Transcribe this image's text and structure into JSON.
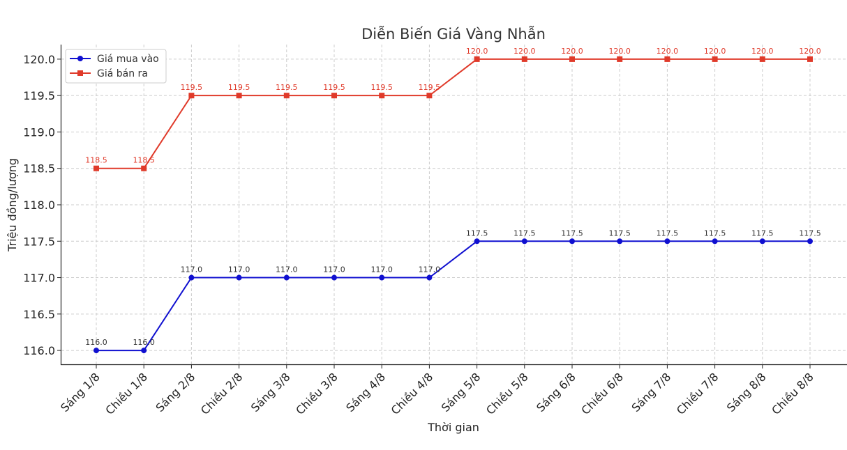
{
  "chart_data": {
    "type": "line",
    "title": "Diễn Biến Giá Vàng Nhẫn",
    "xlabel": "Thời gian",
    "ylabel": "Triệu đồng/lượng",
    "categories": [
      "Sáng 1/8",
      "Chiều 1/8",
      "Sáng 2/8",
      "Chiều 2/8",
      "Sáng 3/8",
      "Chiều 3/8",
      "Sáng 4/8",
      "Chiều 4/8",
      "Sáng 5/8",
      "Chiều 5/8",
      "Sáng 6/8",
      "Chiều 6/8",
      "Sáng 7/8",
      "Chiều 7/8",
      "Sáng 8/8",
      "Chiều 8/8"
    ],
    "ylim": [
      115.8,
      120.2
    ],
    "yticks": [
      "116.0",
      "116.5",
      "117.0",
      "117.5",
      "118.0",
      "118.5",
      "119.0",
      "119.5",
      "120.0"
    ],
    "grid": true,
    "legend": "top-left",
    "series": [
      {
        "name": "Giá mua vào",
        "color": "#1010d0",
        "marker": "circle",
        "values": [
          116.0,
          116.0,
          117.0,
          117.0,
          117.0,
          117.0,
          117.0,
          117.0,
          117.5,
          117.5,
          117.5,
          117.5,
          117.5,
          117.5,
          117.5,
          117.5
        ],
        "labels": [
          "116.0",
          "116.0",
          "117.0",
          "117.0",
          "117.0",
          "117.0",
          "117.0",
          "117.0",
          "117.5",
          "117.5",
          "117.5",
          "117.5",
          "117.5",
          "117.5",
          "117.5",
          "117.5"
        ],
        "label_color": "#333333"
      },
      {
        "name": "Giá bán ra",
        "color": "#e03a2a",
        "marker": "square",
        "values": [
          118.5,
          118.5,
          119.5,
          119.5,
          119.5,
          119.5,
          119.5,
          119.5,
          120.0,
          120.0,
          120.0,
          120.0,
          120.0,
          120.0,
          120.0,
          120.0
        ],
        "labels": [
          "118.5",
          "118.5",
          "119.5",
          "119.5",
          "119.5",
          "119.5",
          "119.5",
          "119.5",
          "120.0",
          "120.0",
          "120.0",
          "120.0",
          "120.0",
          "120.0",
          "120.0",
          "120.0"
        ],
        "label_color": "#e03a2a"
      }
    ]
  }
}
